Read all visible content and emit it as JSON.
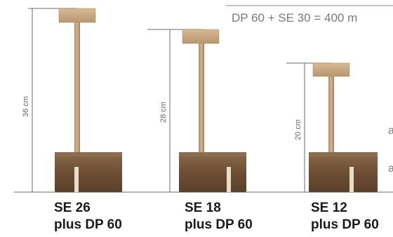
{
  "header": {
    "formula": "DP 60 + SE 30 = 400 m"
  },
  "edge_labels": {
    "top": "a",
    "bottom": "a"
  },
  "stands": [
    {
      "height_label": "36 cm",
      "model": "SE 26",
      "base": "plus DP 60"
    },
    {
      "height_label": "28 cm",
      "model": "SE 18",
      "base": "plus DP 60"
    },
    {
      "height_label": "20 cm",
      "model": "SE 12",
      "base": "plus DP 60"
    }
  ],
  "colors": {
    "wood_light": "#c9a983",
    "wood_mid": "#b08b64",
    "wood_dark": "#6e4f35",
    "line": "#6a6a6a",
    "caption": "#1a1a1a",
    "muted": "#7a7a7a"
  }
}
